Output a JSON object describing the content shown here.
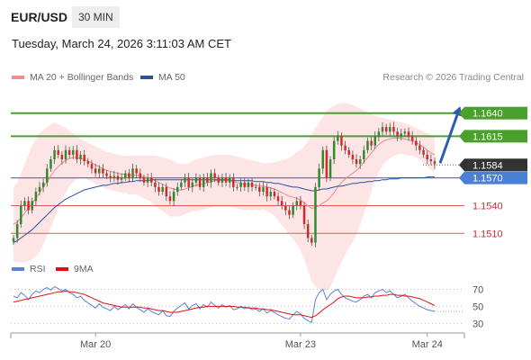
{
  "header": {
    "symbol": "EUR/USD",
    "timeframe": "30 MIN"
  },
  "datetime": "Tuesday, March 24, 2026 3:11:03 AM CET",
  "legend": {
    "ma20_label": "MA 20 + Bollinger Bands",
    "ma50_label": "MA 50",
    "copyright": "Research © 2026 Trading Central"
  },
  "colors": {
    "bullish": "#2e8b2e",
    "bearish": "#d62828",
    "resistance": "#4aa02c",
    "support": "#e35c5c",
    "pivot": "#4a7fd6",
    "current": "#333333",
    "bollinger_fill": "#fde0e0",
    "ma20": "#e88a8a",
    "ma50": "#2c4f9e",
    "rsi": "#5c7fd9",
    "rsi_ma": "#e01010",
    "arrow": "#2a5db0"
  },
  "chart_data": [
    {
      "type": "candlestick",
      "ylim": [
        1.5,
        1.166
      ],
      "levels": [
        {
          "value": 1.164,
          "label": "1.1640",
          "kind": "resistance"
        },
        {
          "value": 1.1615,
          "label": "1.1615",
          "kind": "resistance"
        },
        {
          "value": 1.1584,
          "label": "1.1584",
          "kind": "current"
        },
        {
          "value": 1.157,
          "label": "1.1570",
          "kind": "pivot"
        },
        {
          "value": 1.154,
          "label": "1.1540",
          "kind": "support"
        },
        {
          "value": 1.151,
          "label": "1.1510",
          "kind": "support"
        }
      ],
      "x_labels": [
        "Mar 20",
        "Mar 23",
        "Mar 24"
      ],
      "closes": [
        1.1505,
        1.152,
        1.154,
        1.1545,
        1.1535,
        1.1545,
        1.1555,
        1.156,
        1.1565,
        1.158,
        1.159,
        1.16,
        1.1595,
        1.159,
        1.16,
        1.1595,
        1.16,
        1.159,
        1.1595,
        1.1588,
        1.1585,
        1.158,
        1.1575,
        1.158,
        1.1575,
        1.1572,
        1.157,
        1.1572,
        1.1568,
        1.157,
        1.1575,
        1.157,
        1.158,
        1.1575,
        1.157,
        1.1565,
        1.157,
        1.1565,
        1.156,
        1.1555,
        1.156,
        1.155,
        1.1545,
        1.1555,
        1.156,
        1.1565,
        1.157,
        1.156,
        1.1565,
        1.157,
        1.156,
        1.157,
        1.1565,
        1.1575,
        1.157,
        1.1565,
        1.157,
        1.1565,
        1.157,
        1.156,
        1.156,
        1.1565,
        1.156,
        1.1565,
        1.156,
        1.156,
        1.1555,
        1.156,
        1.155,
        1.1555,
        1.155,
        1.1545,
        1.154,
        1.1535,
        1.153,
        1.154,
        1.1545,
        1.154,
        1.152,
        1.1505,
        1.15,
        1.156,
        1.158,
        1.16,
        1.157,
        1.159,
        1.161,
        1.1615,
        1.1605,
        1.16,
        1.1595,
        1.159,
        1.1585,
        1.159,
        1.16,
        1.161,
        1.1605,
        1.1615,
        1.162,
        1.1625,
        1.162,
        1.1625,
        1.162,
        1.1615,
        1.1618,
        1.162,
        1.1615,
        1.161,
        1.1605,
        1.16,
        1.1595,
        1.159,
        1.1588,
        1.1585
      ],
      "ma20": [
        1.152,
        1.1522,
        1.1527,
        1.1532,
        1.1537,
        1.1542,
        1.1548,
        1.1554,
        1.156,
        1.1566,
        1.1572,
        1.1578,
        1.1582,
        1.1586,
        1.1589,
        1.1591,
        1.1592,
        1.1592,
        1.1591,
        1.159,
        1.1588,
        1.1586,
        1.1584,
        1.1582,
        1.158,
        1.1578,
        1.1577,
        1.1576,
        1.1575,
        1.1574,
        1.1574,
        1.1573,
        1.1573,
        1.1573,
        1.1572,
        1.1571,
        1.157,
        1.1569,
        1.1567,
        1.1565,
        1.1563,
        1.1561,
        1.1559,
        1.1558,
        1.1557,
        1.1557,
        1.1558,
        1.1559,
        1.1561,
        1.1562,
        1.1563,
        1.1564,
        1.1565,
        1.1566,
        1.1567,
        1.1567,
        1.1567,
        1.1567,
        1.1567,
        1.1566,
        1.1565,
        1.1564,
        1.1563,
        1.1563,
        1.1562,
        1.1562,
        1.1561,
        1.1561,
        1.156,
        1.1559,
        1.1558,
        1.1556,
        1.1554,
        1.1552,
        1.155,
        1.1549,
        1.1548,
        1.1546,
        1.1543,
        1.154,
        1.1537,
        1.1538,
        1.154,
        1.1543,
        1.1545,
        1.1549,
        1.1554,
        1.156,
        1.1565,
        1.1569,
        1.1572,
        1.1575,
        1.1578,
        1.1582,
        1.1587,
        1.1592,
        1.1597,
        1.1602,
        1.1606,
        1.1609,
        1.1611,
        1.1612,
        1.1613,
        1.1613,
        1.1613,
        1.1612,
        1.1611,
        1.161,
        1.1608,
        1.1606,
        1.1603,
        1.16,
        1.1597,
        1.1595
      ],
      "bb_upper": [
        1.156,
        1.1565,
        1.1575,
        1.1585,
        1.1595,
        1.1605,
        1.1612,
        1.1618,
        1.1622,
        1.1625,
        1.1628,
        1.163,
        1.1628,
        1.1626,
        1.1624,
        1.1621,
        1.1618,
        1.1615,
        1.1612,
        1.161,
        1.1608,
        1.1606,
        1.1604,
        1.1602,
        1.16,
        1.1598,
        1.1597,
        1.1596,
        1.1595,
        1.1594,
        1.1594,
        1.1594,
        1.1594,
        1.1594,
        1.1594,
        1.1594,
        1.1594,
        1.1594,
        1.1594,
        1.1593,
        1.1592,
        1.1591,
        1.159,
        1.1588,
        1.1586,
        1.1585,
        1.1585,
        1.1586,
        1.1588,
        1.159,
        1.1591,
        1.1592,
        1.1593,
        1.1594,
        1.1595,
        1.1595,
        1.1595,
        1.1595,
        1.1595,
        1.1594,
        1.1593,
        1.1592,
        1.1591,
        1.159,
        1.1589,
        1.1588,
        1.1587,
        1.1586,
        1.1586,
        1.1586,
        1.1587,
        1.1588,
        1.1589,
        1.159,
        1.1592,
        1.1594,
        1.1598,
        1.16,
        1.1604,
        1.161,
        1.1616,
        1.1624,
        1.163,
        1.1636,
        1.1642,
        1.1646,
        1.1648,
        1.165,
        1.1651,
        1.1651,
        1.165,
        1.1649,
        1.1647,
        1.1645,
        1.1643,
        1.1641,
        1.1639,
        1.1637,
        1.1636,
        1.1635,
        1.1634,
        1.1633,
        1.1632,
        1.1631,
        1.163,
        1.1629,
        1.1628,
        1.1626,
        1.1624,
        1.1622,
        1.162,
        1.1618,
        1.1616,
        1.1614
      ],
      "bb_lower": [
        1.148,
        1.1479,
        1.1479,
        1.1479,
        1.148,
        1.1482,
        1.1485,
        1.149,
        1.1498,
        1.1507,
        1.1516,
        1.1526,
        1.1536,
        1.1546,
        1.1554,
        1.1561,
        1.1566,
        1.1569,
        1.157,
        1.157,
        1.1568,
        1.1566,
        1.1564,
        1.1562,
        1.156,
        1.1558,
        1.1557,
        1.1556,
        1.1555,
        1.1554,
        1.1554,
        1.1552,
        1.1552,
        1.1552,
        1.155,
        1.1548,
        1.1546,
        1.1544,
        1.154,
        1.1537,
        1.1534,
        1.1531,
        1.1528,
        1.1528,
        1.1528,
        1.1529,
        1.1531,
        1.1532,
        1.1534,
        1.1534,
        1.1535,
        1.1536,
        1.1537,
        1.1538,
        1.1539,
        1.1539,
        1.1539,
        1.1539,
        1.1539,
        1.1538,
        1.1537,
        1.1536,
        1.1535,
        1.1536,
        1.1535,
        1.1536,
        1.1535,
        1.1536,
        1.1534,
        1.1532,
        1.1529,
        1.1524,
        1.1519,
        1.1514,
        1.1508,
        1.1504,
        1.1498,
        1.1492,
        1.1482,
        1.147,
        1.1458,
        1.1452,
        1.145,
        1.145,
        1.1448,
        1.1452,
        1.146,
        1.147,
        1.1479,
        1.1487,
        1.1494,
        1.1501,
        1.1509,
        1.1519,
        1.1531,
        1.1543,
        1.1555,
        1.1567,
        1.1576,
        1.1583,
        1.1588,
        1.1591,
        1.1594,
        1.1595,
        1.1596,
        1.1595,
        1.1594,
        1.1594,
        1.1592,
        1.159,
        1.1586,
        1.1582,
        1.1578,
        1.1576
      ],
      "ma50": [
        1.15,
        1.1502,
        1.1505,
        1.1508,
        1.1511,
        1.1514,
        1.1518,
        1.1522,
        1.1526,
        1.153,
        1.1534,
        1.1538,
        1.1541,
        1.1544,
        1.1547,
        1.1549,
        1.1551,
        1.1553,
        1.1555,
        1.1557,
        1.1558,
        1.1559,
        1.156,
        1.1561,
        1.1562,
        1.1562,
        1.1563,
        1.1564,
        1.1564,
        1.1565,
        1.1565,
        1.1566,
        1.1566,
        1.1567,
        1.1567,
        1.1567,
        1.1567,
        1.1568,
        1.1568,
        1.1568,
        1.1568,
        1.1568,
        1.1568,
        1.1568,
        1.1568,
        1.1568,
        1.1568,
        1.1568,
        1.1568,
        1.1568,
        1.1568,
        1.1568,
        1.1568,
        1.1568,
        1.1568,
        1.1568,
        1.1568,
        1.1568,
        1.1568,
        1.1567,
        1.1567,
        1.1567,
        1.1567,
        1.1567,
        1.1567,
        1.1566,
        1.1566,
        1.1566,
        1.1565,
        1.1565,
        1.1564,
        1.1564,
        1.1563,
        1.1562,
        1.1561,
        1.156,
        1.156,
        1.1559,
        1.1558,
        1.1557,
        1.1556,
        1.1556,
        1.1557,
        1.1558,
        1.1558,
        1.1559,
        1.156,
        1.1561,
        1.1561,
        1.1562,
        1.1563,
        1.1564,
        1.1564,
        1.1565,
        1.1565,
        1.1566,
        1.1566,
        1.1567,
        1.1567,
        1.1568,
        1.1568,
        1.1569,
        1.1569,
        1.1569,
        1.157,
        1.157,
        1.157,
        1.157,
        1.157,
        1.157,
        1.157,
        1.1571,
        1.1571,
        1.1571
      ],
      "forecast_arrow": {
        "from": 1.1584,
        "to": 1.164
      }
    },
    {
      "type": "line",
      "name": "RSI",
      "legend": [
        "RSI",
        "9MA"
      ],
      "y_ticks": [
        "70",
        "50",
        "30"
      ],
      "ylim": [
        25,
        80
      ],
      "rsi": [
        62,
        60,
        66,
        63,
        58,
        64,
        68,
        66,
        70,
        72,
        69,
        73,
        71,
        68,
        70,
        66,
        64,
        60,
        62,
        57,
        54,
        51,
        48,
        53,
        49,
        47,
        45,
        50,
        46,
        49,
        52,
        47,
        53,
        49,
        46,
        43,
        47,
        44,
        42,
        40,
        45,
        39,
        38,
        44,
        48,
        51,
        54,
        47,
        51,
        53,
        47,
        52,
        49,
        55,
        51,
        48,
        52,
        49,
        51,
        46,
        47,
        50,
        47,
        49,
        46,
        47,
        44,
        47,
        42,
        45,
        43,
        40,
        38,
        36,
        35,
        40,
        44,
        41,
        36,
        33,
        31,
        58,
        66,
        70,
        58,
        64,
        68,
        70,
        64,
        60,
        58,
        56,
        55,
        58,
        62,
        64,
        60,
        66,
        68,
        70,
        66,
        68,
        64,
        60,
        62,
        64,
        60,
        56,
        53,
        50,
        48,
        46,
        45,
        44
      ],
      "rsi_ma": [
        55,
        56,
        57,
        58,
        59,
        60,
        61,
        62,
        63,
        64,
        65,
        66,
        67,
        67,
        68,
        67,
        67,
        66,
        65,
        64,
        62,
        60,
        58,
        56,
        54,
        53,
        52,
        51,
        50,
        49,
        49,
        49,
        49,
        49,
        49,
        48,
        48,
        47,
        46,
        45,
        45,
        44,
        43,
        43,
        43,
        44,
        45,
        46,
        47,
        48,
        49,
        49,
        50,
        50,
        50,
        50,
        50,
        50,
        50,
        50,
        49,
        49,
        49,
        48,
        48,
        48,
        47,
        47,
        46,
        46,
        45,
        44,
        43,
        42,
        41,
        40,
        40,
        40,
        39,
        38,
        37,
        39,
        42,
        46,
        49,
        52,
        55,
        59,
        61,
        62,
        62,
        61,
        60,
        60,
        60,
        61,
        61,
        62,
        62,
        63,
        63,
        64,
        64,
        63,
        63,
        62,
        62,
        61,
        60,
        59,
        57,
        55,
        53,
        51
      ]
    }
  ]
}
